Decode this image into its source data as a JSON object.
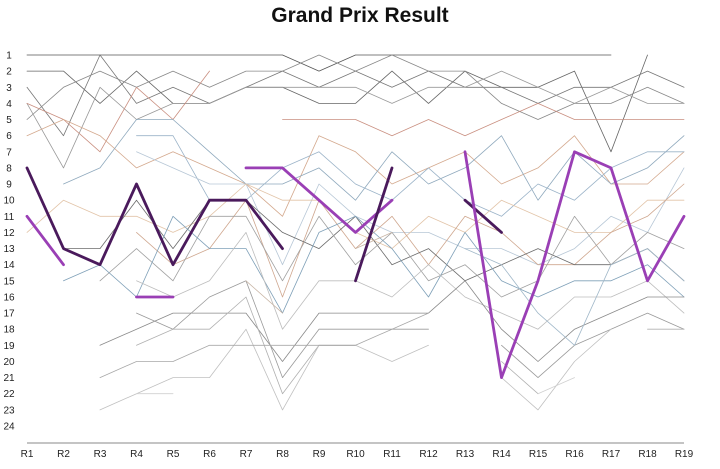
{
  "chart_data": {
    "type": "line",
    "title": "Grand Prix Result",
    "xlabel": "",
    "ylabel": "",
    "categories": [
      "R1",
      "R2",
      "R3",
      "R4",
      "R5",
      "R6",
      "R7",
      "R8",
      "R9",
      "R10",
      "R11",
      "R12",
      "R13",
      "R14",
      "R15",
      "R16",
      "R17",
      "R18",
      "R19"
    ],
    "y_ticks": [
      "1",
      "2",
      "3",
      "4",
      "5",
      "6",
      "7",
      "8",
      "9",
      "10",
      "11",
      "12",
      "13",
      "14",
      "15",
      "16",
      "17",
      "18",
      "19",
      "20",
      "21",
      "22",
      "23",
      "24"
    ],
    "ylim": [
      1,
      24
    ],
    "y_inverted": true,
    "grid": false,
    "legend": "none",
    "series": [
      {
        "color": "#555555",
        "width": 0.8,
        "values": [
          1,
          1,
          1,
          1,
          1,
          1,
          1,
          1,
          2,
          1,
          1,
          1,
          1,
          1,
          1,
          1,
          1,
          null,
          null
        ]
      },
      {
        "color": "#666666",
        "width": 0.8,
        "values": [
          2,
          2,
          4,
          2,
          4,
          4,
          3,
          3,
          4,
          4,
          2,
          4,
          2,
          3,
          3,
          2,
          7,
          1,
          null
        ]
      },
      {
        "color": "#777777",
        "width": 0.8,
        "values": [
          3,
          6,
          1,
          4,
          3,
          4,
          3,
          2,
          3,
          2,
          3,
          2,
          3,
          3,
          4,
          3,
          3,
          2,
          3
        ]
      },
      {
        "color": "#888888",
        "width": 0.8,
        "values": [
          5,
          3,
          2,
          3,
          2,
          3,
          2,
          2,
          1,
          2,
          1,
          2,
          2,
          4,
          5,
          4,
          4,
          3,
          4
        ]
      },
      {
        "color": "#999999",
        "width": 0.8,
        "values": [
          4,
          8,
          3,
          5,
          4,
          4,
          3,
          3,
          3,
          3,
          4,
          3,
          3,
          2,
          3,
          4,
          3,
          4,
          4
        ]
      },
      {
        "color": "#c98f80",
        "width": 0.8,
        "values": [
          4,
          5,
          7,
          3,
          5,
          2,
          null,
          5,
          5,
          5,
          6,
          5,
          6,
          5,
          4,
          5,
          5,
          5,
          5
        ]
      },
      {
        "color": "#d4a98e",
        "width": 0.8,
        "values": [
          6,
          5,
          6,
          8,
          7,
          8,
          9,
          11,
          6,
          7,
          9,
          8,
          7,
          9,
          8,
          6,
          9,
          9,
          7
        ]
      },
      {
        "color": "#8fa9bd",
        "width": 0.8,
        "values": [
          null,
          9,
          8,
          5,
          5,
          7,
          9,
          9,
          8,
          10,
          7,
          9,
          8,
          6,
          10,
          7,
          9,
          8,
          6
        ]
      },
      {
        "color": "#9bb3c8",
        "width": 0.8,
        "values": [
          null,
          null,
          null,
          6,
          6,
          10,
          10,
          8,
          7,
          9,
          10,
          8,
          10,
          11,
          9,
          10,
          8,
          7,
          7
        ]
      },
      {
        "color": "#b7c7d6",
        "width": 0.8,
        "values": [
          null,
          null,
          null,
          7,
          8,
          9,
          9,
          14,
          9,
          11,
          12,
          12,
          13,
          13,
          14,
          13,
          11,
          12,
          8
        ]
      },
      {
        "color": "#e2c4a8",
        "width": 0.8,
        "values": [
          12,
          10,
          11,
          11,
          12,
          11,
          9,
          10,
          10,
          12,
          13,
          11,
          12,
          10,
          11,
          12,
          12,
          10,
          10
        ]
      },
      {
        "color": "#cfa78f",
        "width": 0.8,
        "values": [
          null,
          null,
          null,
          12,
          14,
          13,
          10,
          16,
          10,
          13,
          11,
          14,
          11,
          12,
          14,
          14,
          12,
          11,
          9
        ]
      },
      {
        "color": "#6b6b6b",
        "width": 0.8,
        "values": [
          null,
          13,
          13,
          10,
          13,
          10,
          10,
          12,
          13,
          11,
          14,
          13,
          15,
          14,
          13,
          14,
          14,
          13,
          15
        ]
      },
      {
        "color": "#a0a0a0",
        "width": 0.8,
        "values": [
          null,
          null,
          15,
          13,
          15,
          11,
          11,
          15,
          11,
          14,
          12,
          15,
          14,
          16,
          15,
          11,
          14,
          12,
          13
        ]
      },
      {
        "color": "#7fa0b8",
        "width": 0.8,
        "values": [
          null,
          15,
          14,
          16,
          11,
          13,
          13,
          17,
          12,
          11,
          13,
          16,
          12,
          15,
          16,
          15,
          15,
          14,
          16
        ]
      },
      {
        "color": "#bdbdbd",
        "width": 0.8,
        "values": [
          null,
          null,
          null,
          15,
          16,
          15,
          12,
          18,
          15,
          15,
          16,
          14,
          16,
          17,
          18,
          16,
          16,
          15,
          17
        ]
      },
      {
        "color": "#8a8a8a",
        "width": 0.8,
        "values": [
          null,
          null,
          19,
          18,
          17,
          17,
          17,
          20,
          17,
          17,
          17,
          17,
          15,
          18,
          20,
          18,
          17,
          16,
          16
        ]
      },
      {
        "color": "#9a9a9a",
        "width": 0.8,
        "values": [
          null,
          null,
          null,
          17,
          18,
          16,
          15,
          21,
          18,
          18,
          18,
          18,
          null,
          19,
          21,
          19,
          18,
          17,
          18
        ]
      },
      {
        "color": "#b0b0b0",
        "width": 0.8,
        "values": [
          null,
          null,
          null,
          19,
          18,
          18,
          16,
          22,
          19,
          19,
          null,
          null,
          null,
          20,
          22,
          null,
          null,
          18,
          18
        ]
      },
      {
        "color": "#c0c0c0",
        "width": 0.8,
        "values": [
          null,
          null,
          23,
          22,
          21,
          21,
          18,
          23,
          19,
          19,
          20,
          19,
          null,
          21,
          23,
          20,
          18,
          null,
          null
        ]
      },
      {
        "color": "#d0d0d0",
        "width": 0.8,
        "values": [
          null,
          null,
          null,
          22,
          22,
          null,
          null,
          24,
          null,
          null,
          null,
          null,
          null,
          null,
          22,
          21,
          null,
          null,
          null
        ]
      },
      {
        "color": "#a8a8a8",
        "width": 0.8,
        "values": [
          null,
          null,
          21,
          20,
          20,
          19,
          19,
          19,
          19,
          19,
          18,
          17,
          null,
          null,
          null,
          null,
          null,
          null,
          null
        ]
      },
      {
        "color": "#c8b5a5",
        "width": 0.8,
        "values": [
          null,
          null,
          null,
          null,
          null,
          null,
          15,
          17,
          null,
          13,
          12,
          null,
          null,
          null,
          null,
          null,
          null,
          null,
          null
        ]
      },
      {
        "color": "#a1b8c9",
        "width": 0.8,
        "values": [
          null,
          null,
          null,
          null,
          null,
          null,
          null,
          null,
          null,
          null,
          null,
          null,
          13,
          14,
          17,
          19,
          14,
          13,
          15
        ]
      },
      {
        "color": "#4a1a5c",
        "width": 2.8,
        "values": [
          8,
          13,
          14,
          9,
          14,
          10,
          10,
          13,
          null,
          null,
          null,
          null,
          null,
          null,
          null,
          null,
          null,
          null,
          null
        ]
      },
      {
        "color": "#9a3fb5",
        "width": 2.8,
        "values": [
          11,
          14,
          null,
          null,
          null,
          null,
          null,
          null,
          null,
          null,
          null,
          null,
          null,
          null,
          null,
          null,
          null,
          null,
          null
        ]
      },
      {
        "color": "#9a3fb5",
        "width": 2.8,
        "values": [
          null,
          null,
          null,
          16,
          16,
          null,
          null,
          null,
          null,
          null,
          null,
          null,
          null,
          null,
          null,
          null,
          null,
          null,
          null
        ]
      },
      {
        "color": "#9a3fb5",
        "width": 2.8,
        "values": [
          null,
          null,
          null,
          null,
          null,
          null,
          8,
          8,
          10,
          12,
          10,
          null,
          null,
          null,
          null,
          null,
          null,
          null,
          null
        ]
      },
      {
        "color": "#4a1a5c",
        "width": 2.8,
        "values": [
          null,
          null,
          null,
          null,
          null,
          null,
          null,
          null,
          null,
          15,
          8,
          null,
          null,
          null,
          null,
          null,
          null,
          null,
          null
        ]
      },
      {
        "color": "#4a1a5c",
        "width": 2.8,
        "values": [
          null,
          null,
          null,
          null,
          null,
          null,
          null,
          null,
          null,
          null,
          null,
          null,
          10,
          12,
          null,
          null,
          null,
          null,
          null
        ]
      },
      {
        "color": "#9a3fb5",
        "width": 2.8,
        "values": [
          null,
          null,
          null,
          null,
          null,
          null,
          null,
          null,
          null,
          null,
          null,
          null,
          7,
          21,
          15,
          7,
          8,
          15,
          11
        ]
      }
    ]
  }
}
